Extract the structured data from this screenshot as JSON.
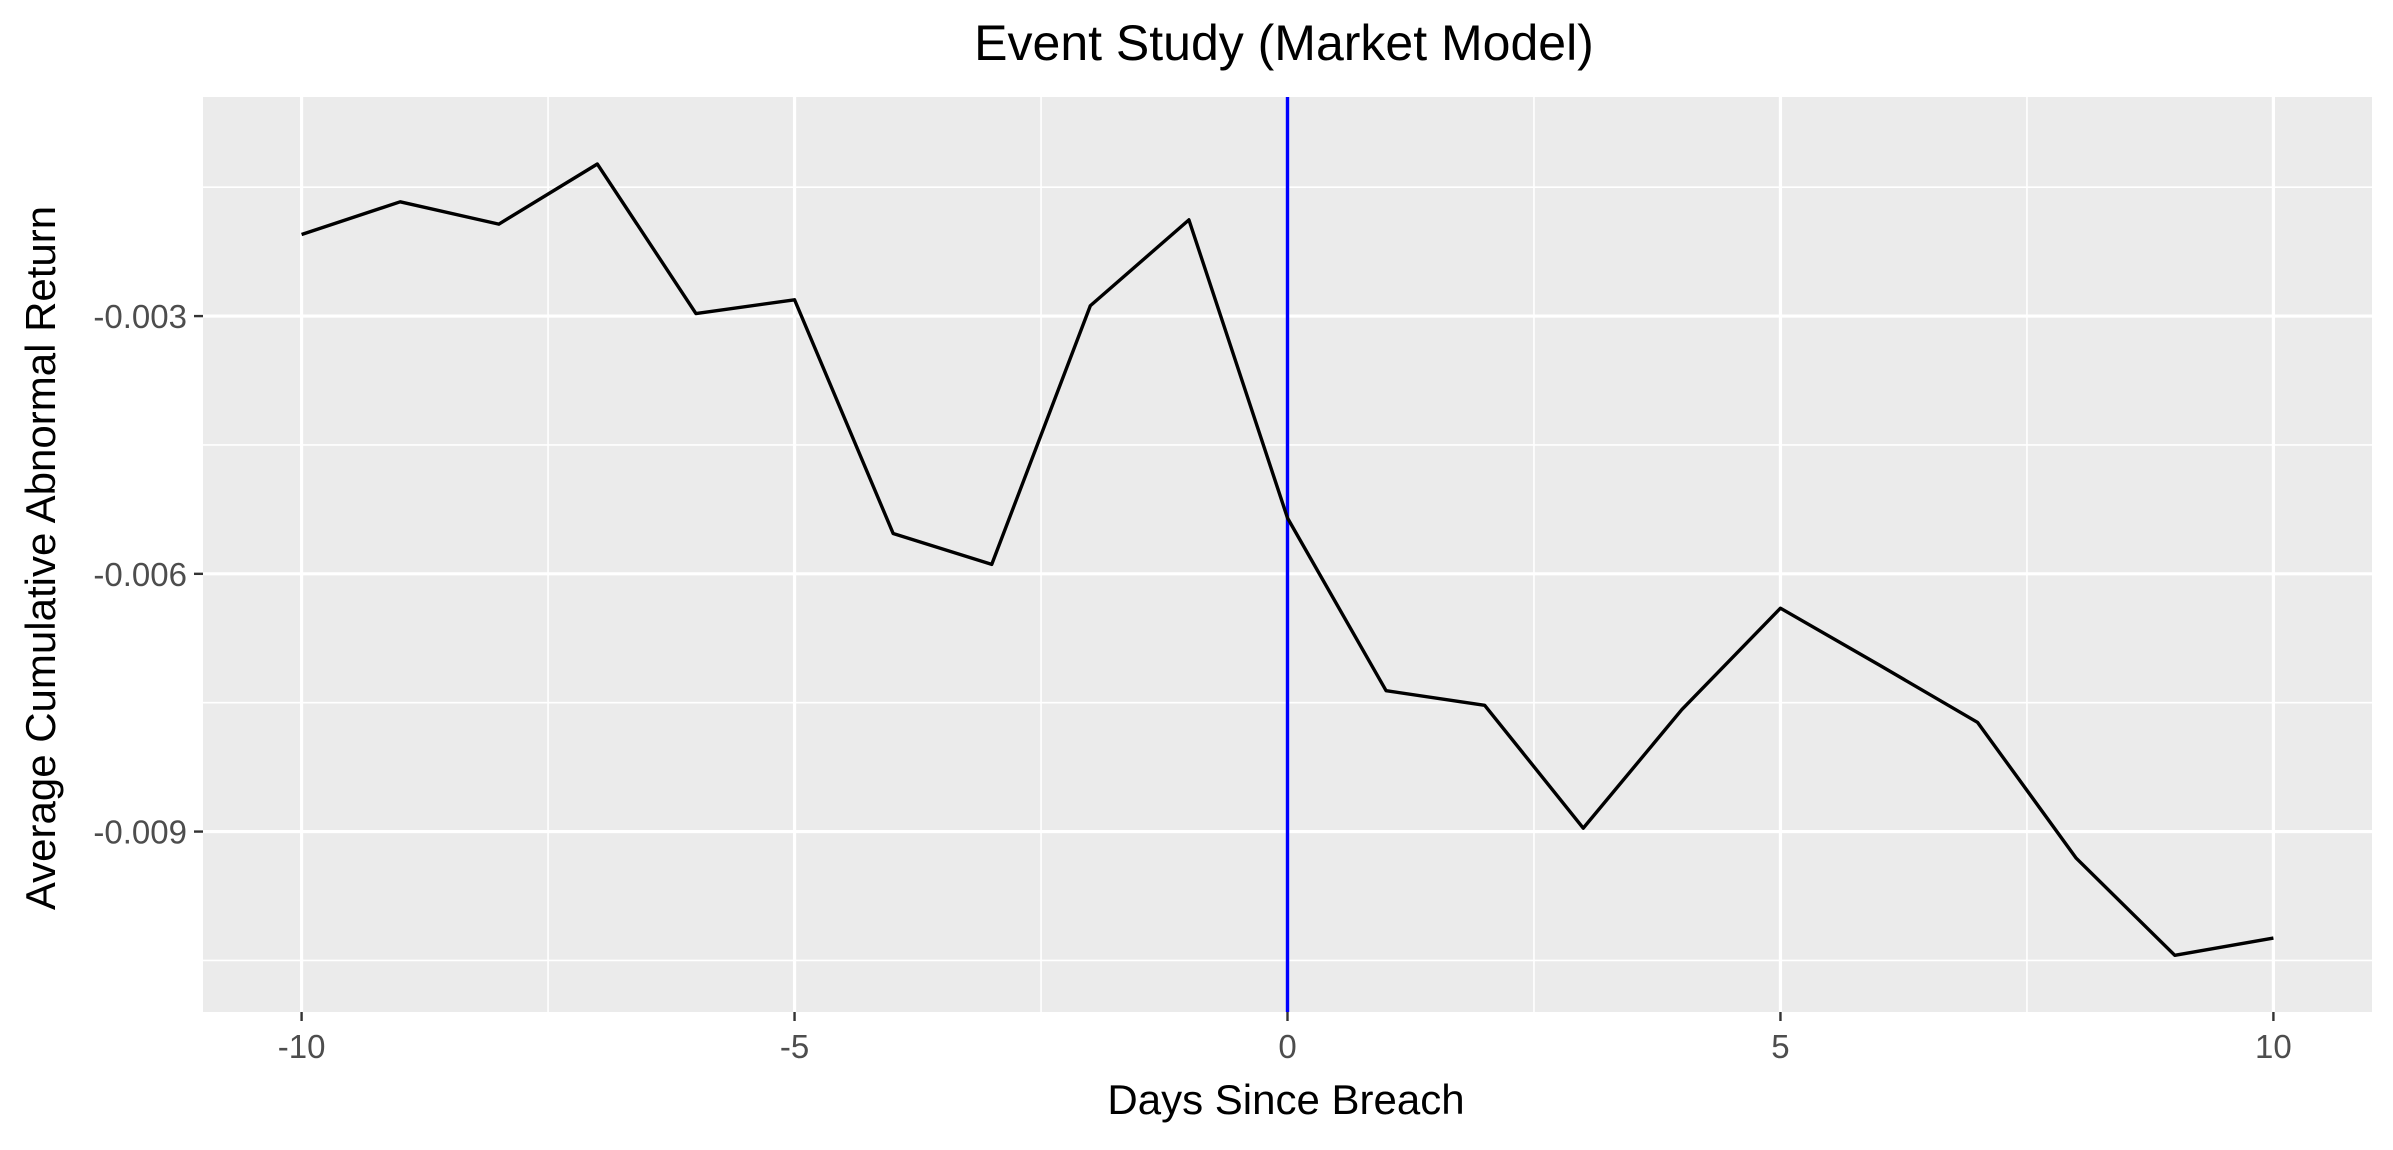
{
  "chart_data": {
    "type": "line",
    "title": "Event Study (Market Model)",
    "xlabel": "Days Since Breach",
    "ylabel": "Average Cumulative Abnormal Return",
    "xlim": [
      -11,
      11
    ],
    "ylim": [
      -0.0111,
      -0.00045
    ],
    "x_ticks": [
      -10,
      -5,
      0,
      5,
      10
    ],
    "x_minor_ticks": [
      -7.5,
      -2.5,
      2.5,
      7.5
    ],
    "y_ticks": [
      -0.009,
      -0.006,
      -0.003
    ],
    "y_tick_labels": [
      "-0.009",
      "-0.006",
      "-0.003"
    ],
    "y_minor_ticks": [
      -0.0105,
      -0.0075,
      -0.0045,
      -0.0015
    ],
    "grid": true,
    "background_color": "#ebebeb",
    "grid_color": "#ffffff",
    "line_color": "#000000",
    "vline": {
      "x": 0,
      "color": "#0000ff"
    },
    "x": [
      -10,
      -9,
      -8,
      -7,
      -6,
      -5,
      -4,
      -3,
      -2,
      -1,
      0,
      1,
      2,
      3,
      4,
      5,
      6,
      7,
      8,
      9,
      10
    ],
    "series": [
      {
        "values": [
          -0.00205,
          -0.00167,
          -0.00193,
          -0.00123,
          -0.00297,
          -0.00281,
          -0.00553,
          -0.00589,
          -0.00288,
          -0.00188,
          -0.00535,
          -0.00736,
          -0.00753,
          -0.00896,
          -0.00758,
          -0.0064,
          -0.00706,
          -0.00773,
          -0.00931,
          -0.01044,
          -0.01024
        ]
      }
    ]
  }
}
